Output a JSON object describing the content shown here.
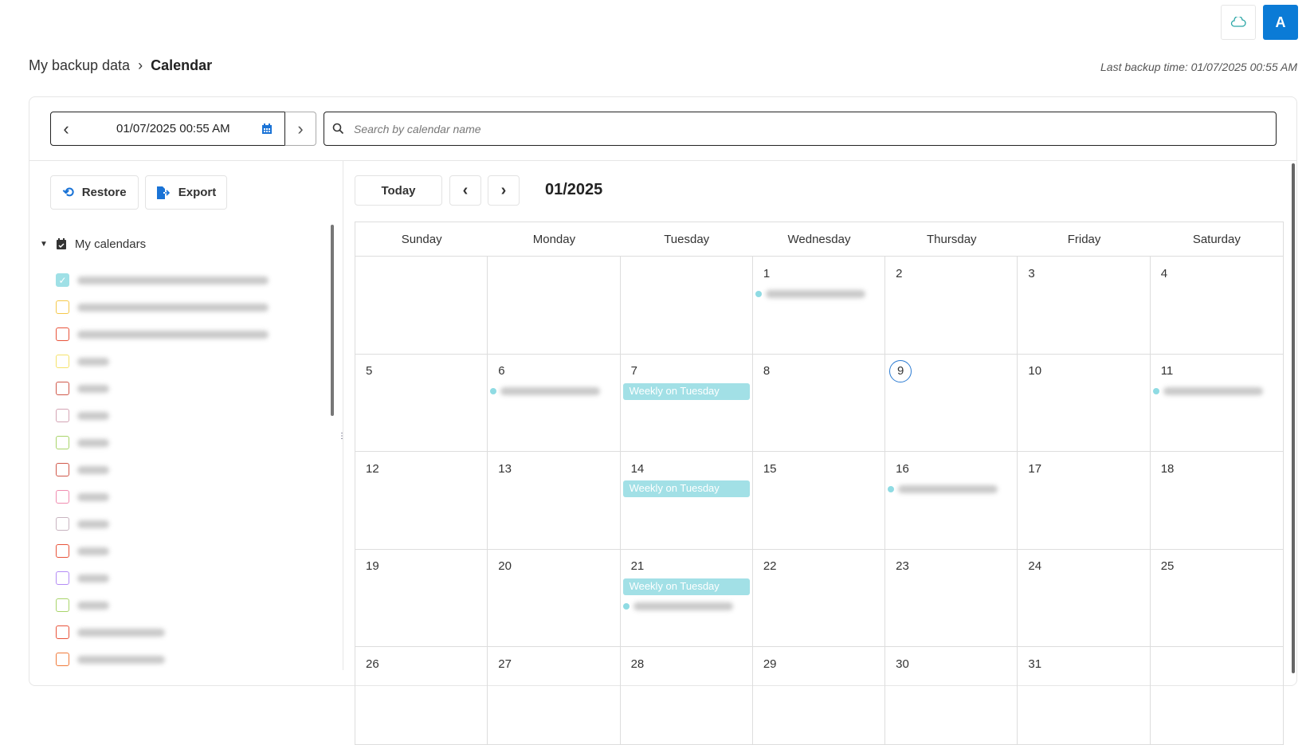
{
  "header": {
    "avatar_letter": "A",
    "cloud_icon": "cloud-sync-icon"
  },
  "breadcrumb": {
    "parent": "My backup data",
    "current": "Calendar"
  },
  "last_backup": "Last backup time: 01/07/2025 00:55 AM",
  "date_picker": {
    "value": "01/07/2025 00:55 AM"
  },
  "search": {
    "placeholder": "Search by calendar name"
  },
  "actions": {
    "restore": "Restore",
    "export": "Export"
  },
  "sidebar": {
    "group_label": "My calendars",
    "items": [
      {
        "color": "#9fe0e6",
        "checked": true
      },
      {
        "color": "#f5c84a",
        "checked": false
      },
      {
        "color": "#e8533a",
        "checked": false
      },
      {
        "color": "#f5e26a",
        "checked": false
      },
      {
        "color": "#d0584a",
        "checked": false
      },
      {
        "color": "#d4a4b4",
        "checked": false
      },
      {
        "color": "#a8d46a",
        "checked": false
      },
      {
        "color": "#d0584a",
        "checked": false
      },
      {
        "color": "#f08cb0",
        "checked": false
      },
      {
        "color": "#c8b4c0",
        "checked": false
      },
      {
        "color": "#e8533a",
        "checked": false
      },
      {
        "color": "#b48cf5",
        "checked": false
      },
      {
        "color": "#a8d46a",
        "checked": false
      },
      {
        "color": "#e8533a",
        "checked": false
      },
      {
        "color": "#f07a3a",
        "checked": false
      }
    ]
  },
  "calendar": {
    "today_label": "Today",
    "month_title": "01/2025",
    "weekdays": [
      "Sunday",
      "Monday",
      "Tuesday",
      "Wednesday",
      "Thursday",
      "Friday",
      "Saturday"
    ],
    "today_day": "9",
    "event_color": "#a2e0e6",
    "weeks": [
      [
        {
          "d": ""
        },
        {
          "d": ""
        },
        {
          "d": ""
        },
        {
          "d": "1",
          "ev": [
            {
              "t": "dot"
            }
          ]
        },
        {
          "d": "2"
        },
        {
          "d": "3"
        },
        {
          "d": "4"
        }
      ],
      [
        {
          "d": "5"
        },
        {
          "d": "6",
          "ev": [
            {
              "t": "dot"
            }
          ]
        },
        {
          "d": "7",
          "ev": [
            {
              "t": "bar",
              "label": "Weekly on Tuesday"
            }
          ]
        },
        {
          "d": "8"
        },
        {
          "d": "9"
        },
        {
          "d": "10"
        },
        {
          "d": "11",
          "ev": [
            {
              "t": "dot"
            }
          ]
        }
      ],
      [
        {
          "d": "12"
        },
        {
          "d": "13"
        },
        {
          "d": "14",
          "ev": [
            {
              "t": "bar",
              "label": "Weekly on Tuesday"
            }
          ]
        },
        {
          "d": "15"
        },
        {
          "d": "16",
          "ev": [
            {
              "t": "dot"
            }
          ]
        },
        {
          "d": "17"
        },
        {
          "d": "18"
        }
      ],
      [
        {
          "d": "19"
        },
        {
          "d": "20"
        },
        {
          "d": "21",
          "ev": [
            {
              "t": "bar",
              "label": "Weekly on Tuesday"
            },
            {
              "t": "dot"
            }
          ]
        },
        {
          "d": "22"
        },
        {
          "d": "23"
        },
        {
          "d": "24"
        },
        {
          "d": "25"
        }
      ],
      [
        {
          "d": "26"
        },
        {
          "d": "27"
        },
        {
          "d": "28"
        },
        {
          "d": "29"
        },
        {
          "d": "30"
        },
        {
          "d": "31"
        },
        {
          "d": ""
        }
      ]
    ]
  }
}
